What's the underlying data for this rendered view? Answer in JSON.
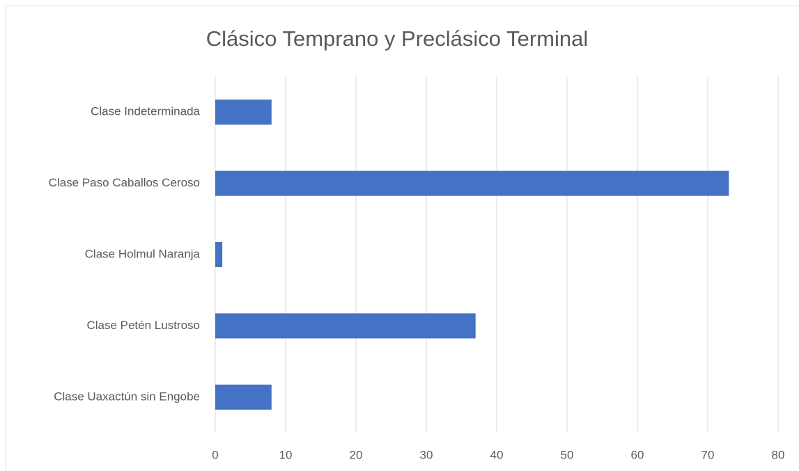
{
  "chart_data": {
    "type": "bar",
    "orientation": "horizontal",
    "title": "Clásico Temprano y Preclásico Terminal",
    "categories": [
      "Clase Indeterminada",
      "Clase Paso Caballos Ceroso",
      "Clase Holmul Naranja",
      "Clase Petén Lustroso",
      "Clase Uaxactún sin Engobe"
    ],
    "values": [
      8,
      73,
      1,
      37,
      8
    ],
    "color": "#4472c4",
    "xlim": [
      0,
      80
    ],
    "xticks": [
      0,
      10,
      20,
      30,
      40,
      50,
      60,
      70,
      80
    ],
    "grid": true
  }
}
